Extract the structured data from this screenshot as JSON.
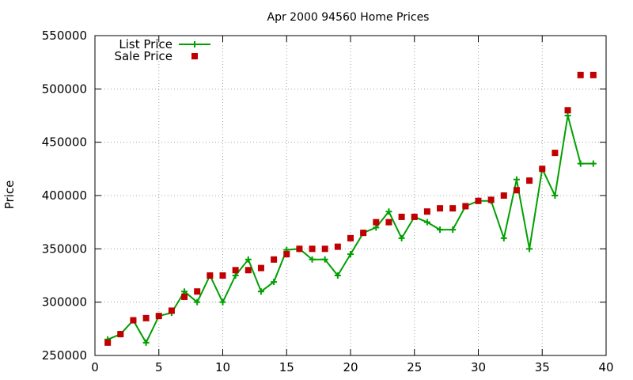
{
  "chart_data": {
    "type": "line",
    "title": "Apr 2000 94560 Home Prices",
    "xlabel": "",
    "ylabel": "Price",
    "xlim": [
      0,
      40
    ],
    "ylim": [
      250000,
      550000
    ],
    "x_ticks": [
      0,
      5,
      10,
      15,
      20,
      25,
      30,
      35,
      40
    ],
    "y_ticks": [
      250000,
      300000,
      350000,
      400000,
      450000,
      500000,
      550000
    ],
    "grid": true,
    "legend_position": "top-left",
    "series": [
      {
        "name": "List Price",
        "style": "line-with-plus-markers",
        "color": "#00a000",
        "x": [
          1,
          2,
          3,
          4,
          5,
          6,
          7,
          8,
          9,
          10,
          11,
          12,
          13,
          14,
          15,
          16,
          17,
          18,
          19,
          20,
          21,
          22,
          23,
          24,
          25,
          26,
          27,
          28,
          29,
          30,
          31,
          32,
          33,
          34,
          35,
          36,
          37,
          38,
          39
        ],
        "values": [
          265000,
          270000,
          283000,
          262000,
          287000,
          290000,
          310000,
          300000,
          325000,
          300000,
          325000,
          340000,
          310000,
          319000,
          349000,
          350000,
          340000,
          340000,
          325000,
          345000,
          365000,
          370000,
          385000,
          360000,
          380000,
          375000,
          368000,
          368000,
          390000,
          395000,
          395000,
          360000,
          415000,
          350000,
          425000,
          400000,
          475000,
          430000,
          430000
        ]
      },
      {
        "name": "Sale Price",
        "style": "square-markers",
        "color": "#c00000",
        "x": [
          1,
          2,
          3,
          4,
          5,
          6,
          7,
          8,
          9,
          10,
          11,
          12,
          13,
          14,
          15,
          16,
          17,
          18,
          19,
          20,
          21,
          22,
          23,
          24,
          25,
          26,
          27,
          28,
          29,
          30,
          31,
          32,
          33,
          34,
          35,
          36,
          37,
          38,
          39
        ],
        "values": [
          262000,
          270000,
          283000,
          285000,
          287000,
          292000,
          305000,
          310000,
          325000,
          325000,
          330000,
          330000,
          332000,
          340000,
          345000,
          350000,
          350000,
          350000,
          352000,
          360000,
          365000,
          375000,
          375000,
          380000,
          380000,
          385000,
          388000,
          388000,
          390000,
          395000,
          396000,
          400000,
          405000,
          414000,
          425000,
          440000,
          480000,
          513000,
          513000
        ]
      }
    ]
  }
}
